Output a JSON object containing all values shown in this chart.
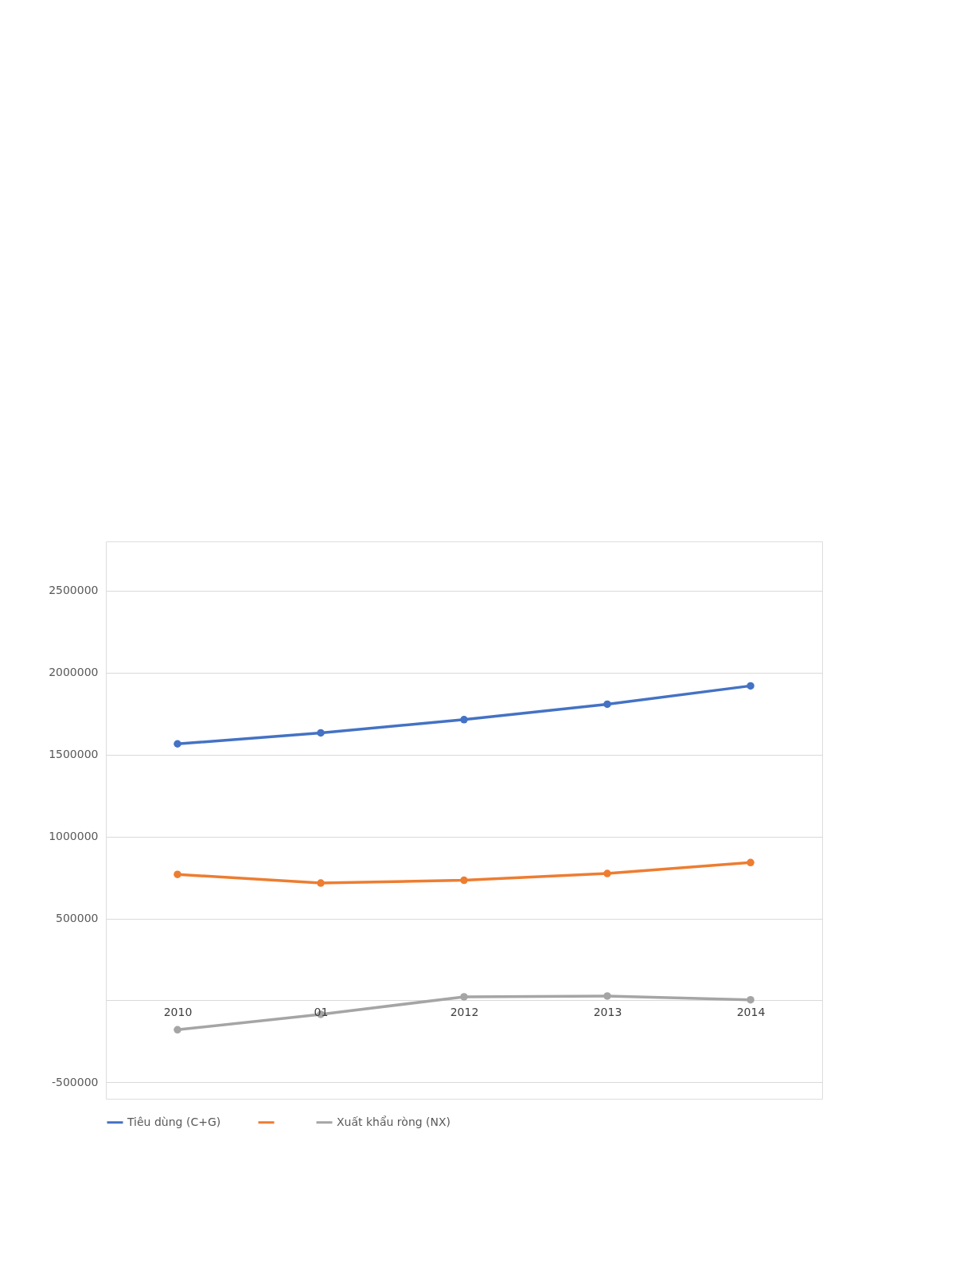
{
  "chart_data": {
    "type": "line",
    "categories": [
      "2010",
      "01",
      "2012",
      "2013",
      "2014"
    ],
    "series": [
      {
        "name": "Tiêu dùng (C+G)",
        "color": "#4472c4",
        "values": [
          1565000,
          1632000,
          1713000,
          1807000,
          1919000
        ]
      },
      {
        "color": "#ed7d31",
        "values": [
          769000,
          716000,
          733000,
          774000,
          841000
        ]
      },
      {
        "name": "Xuất khẩu ròng (NX)",
        "color": "#a5a5a5",
        "values": [
          -179000,
          -85000,
          22000,
          27000,
          4000
        ]
      }
    ],
    "ylim": [
      -600000,
      2800000
    ],
    "yticks": [
      -500000,
      {
        "value": 0,
        "label": null
      },
      500000,
      1000000,
      1500000,
      2000000,
      2500000
    ],
    "grid": "y",
    "legend": "bottom",
    "marker": "circle",
    "line_style": "solid"
  }
}
